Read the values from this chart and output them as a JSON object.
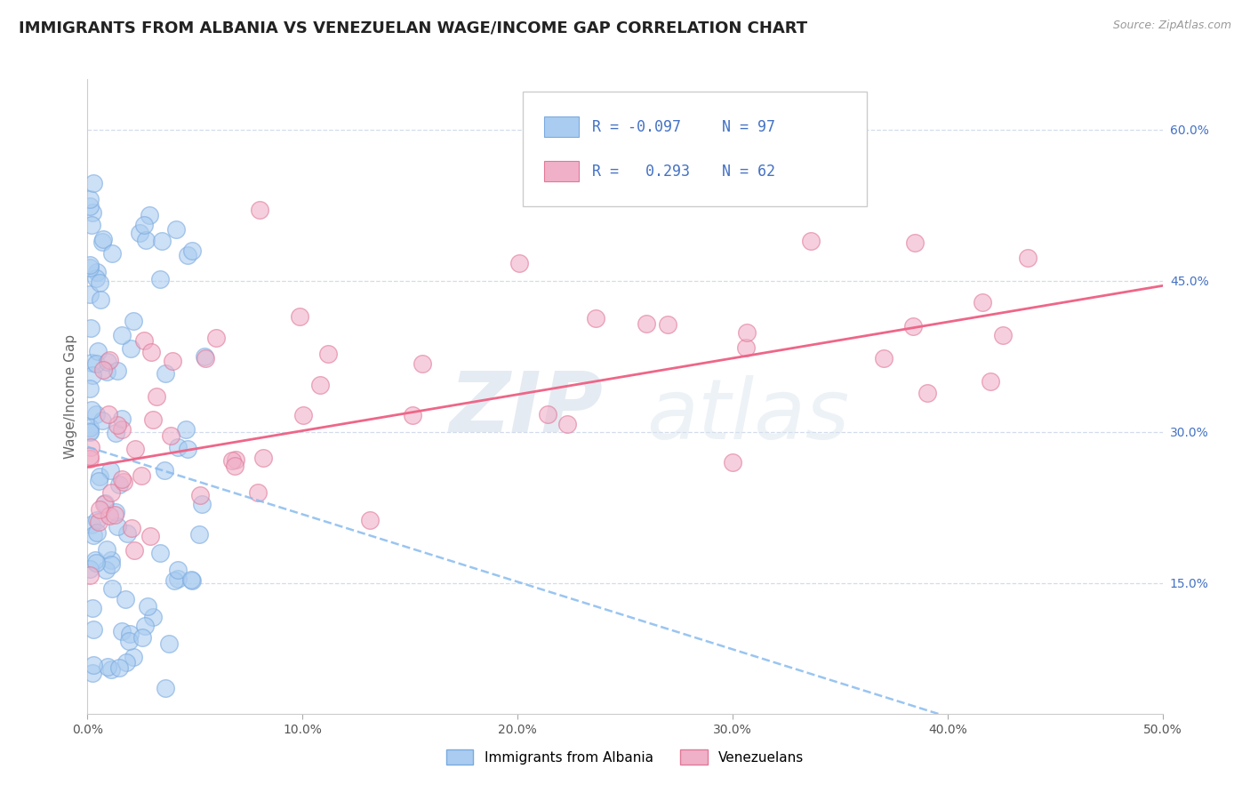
{
  "title": "IMMIGRANTS FROM ALBANIA VS VENEZUELAN WAGE/INCOME GAP CORRELATION CHART",
  "source": "Source: ZipAtlas.com",
  "ylabel": "Wage/Income Gap",
  "xlim": [
    0.0,
    0.5
  ],
  "ylim": [
    0.02,
    0.65
  ],
  "xticks": [
    0.0,
    0.1,
    0.2,
    0.3,
    0.4,
    0.5
  ],
  "xticklabels": [
    "0.0%",
    "10.0%",
    "20.0%",
    "30.0%",
    "40.0%",
    "50.0%"
  ],
  "yticks_right": [
    0.15,
    0.3,
    0.45,
    0.6
  ],
  "yticklabels_right": [
    "15.0%",
    "30.0%",
    "45.0%",
    "60.0%"
  ],
  "albania_color": "#aaccf0",
  "albania_edge": "#7aaae0",
  "venezuela_color": "#f0b0c8",
  "venezuela_edge": "#e07898",
  "legend_albania_label": "Immigrants from Albania",
  "legend_venezuela_label": "Venezuelans",
  "legend_R_albania": "R = -0.097",
  "legend_N_albania": "N = 97",
  "legend_R_venezuela": "R =   0.293",
  "legend_N_venezuela": "N = 62",
  "trend_albania_color": "#88bbee",
  "trend_venezuela_color": "#ee6688",
  "watermark_zip": "ZIP",
  "watermark_atlas": "atlas",
  "title_fontsize": 13,
  "axis_fontsize": 11,
  "tick_fontsize": 10,
  "albania_seed": 12,
  "venezuela_seed": 7
}
